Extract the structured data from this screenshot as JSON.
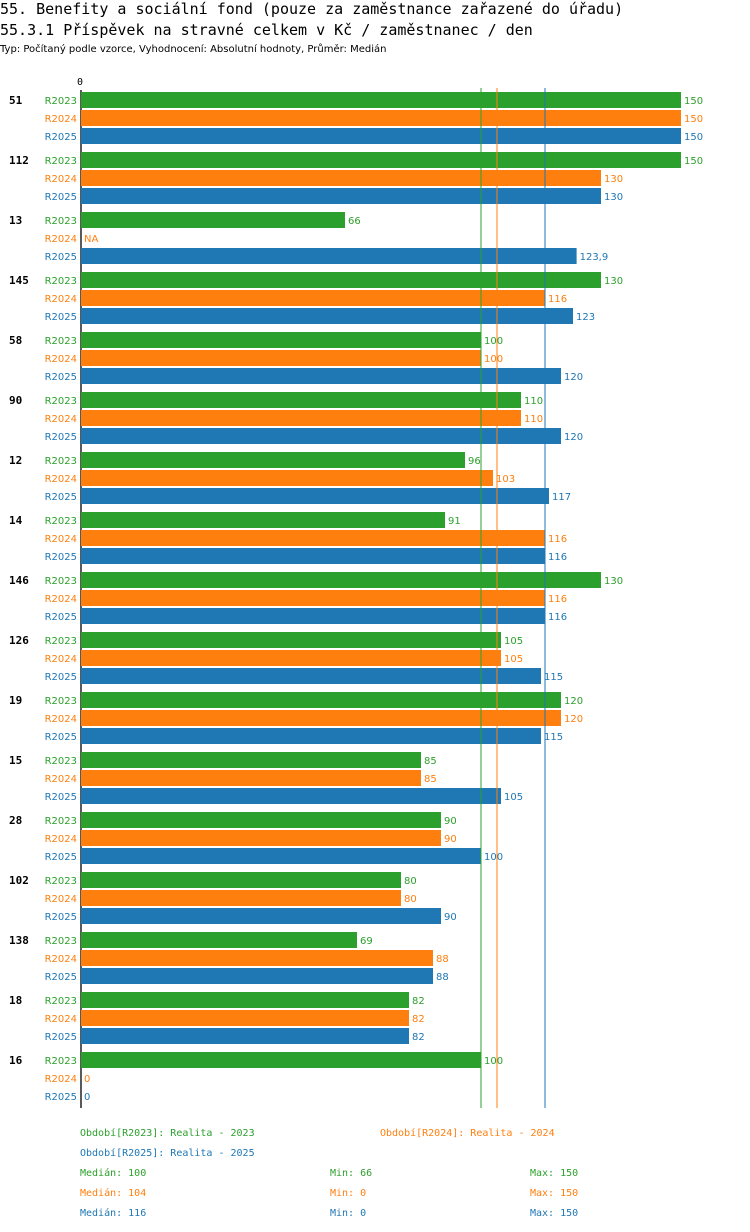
{
  "header": {
    "title_line1": "55. Benefity a sociální fond (pouze za zaměstnance zařazené do úřadu)",
    "title_line2": "55.3.1 Příspěvek na stravné celkem v Kč / zaměstnanec / den",
    "subtitle": "Typ: Počítaný podle vzorce, Vyhodnocení: Absolutní hodnoty, Průměr: Medián"
  },
  "colors": {
    "R2023": "#2ca02c",
    "R2024": "#ff7f0e",
    "R2025": "#1f77b4"
  },
  "chart_data": {
    "type": "bar",
    "orientation": "horizontal",
    "xlim": [
      0,
      150
    ],
    "axis_zero_label": "0",
    "series_names": [
      "R2023",
      "R2024",
      "R2025"
    ],
    "groups": [
      {
        "id": "51",
        "values": [
          150,
          150,
          150
        ],
        "labels": [
          "150",
          "150",
          "150"
        ]
      },
      {
        "id": "112",
        "values": [
          150,
          130,
          130
        ],
        "labels": [
          "150",
          "130",
          "130"
        ]
      },
      {
        "id": "13",
        "values": [
          66,
          null,
          123.9
        ],
        "labels": [
          "66",
          "NA",
          "123,9"
        ]
      },
      {
        "id": "145",
        "values": [
          130,
          116,
          123
        ],
        "labels": [
          "130",
          "116",
          "123"
        ]
      },
      {
        "id": "58",
        "values": [
          100,
          100,
          120
        ],
        "labels": [
          "100",
          "100",
          "120"
        ]
      },
      {
        "id": "90",
        "values": [
          110,
          110,
          120
        ],
        "labels": [
          "110",
          "110",
          "120"
        ]
      },
      {
        "id": "12",
        "values": [
          96,
          103,
          117
        ],
        "labels": [
          "96",
          "103",
          "117"
        ]
      },
      {
        "id": "14",
        "values": [
          91,
          116,
          116
        ],
        "labels": [
          "91",
          "116",
          "116"
        ]
      },
      {
        "id": "146",
        "values": [
          130,
          116,
          116
        ],
        "labels": [
          "130",
          "116",
          "116"
        ]
      },
      {
        "id": "126",
        "values": [
          105,
          105,
          115
        ],
        "labels": [
          "105",
          "105",
          "115"
        ]
      },
      {
        "id": "19",
        "values": [
          120,
          120,
          115
        ],
        "labels": [
          "120",
          "120",
          "115"
        ]
      },
      {
        "id": "15",
        "values": [
          85,
          85,
          105
        ],
        "labels": [
          "85",
          "85",
          "105"
        ]
      },
      {
        "id": "28",
        "values": [
          90,
          90,
          100
        ],
        "labels": [
          "90",
          "90",
          "100"
        ]
      },
      {
        "id": "102",
        "values": [
          80,
          80,
          90
        ],
        "labels": [
          "80",
          "80",
          "90"
        ]
      },
      {
        "id": "138",
        "values": [
          69,
          88,
          88
        ],
        "labels": [
          "69",
          "88",
          "88"
        ]
      },
      {
        "id": "18",
        "values": [
          82,
          82,
          82
        ],
        "labels": [
          "82",
          "82",
          "82"
        ]
      },
      {
        "id": "16",
        "values": [
          100,
          0,
          0
        ],
        "labels": [
          "100",
          "0",
          "0"
        ]
      }
    ],
    "median_lines": [
      {
        "series": "R2023",
        "value": 100
      },
      {
        "series": "R2024",
        "value": 104
      },
      {
        "series": "R2025",
        "value": 116
      }
    ]
  },
  "legend": {
    "periods": [
      {
        "series": "R2023",
        "text": "Období[R2023]: Realita - 2023"
      },
      {
        "series": "R2024",
        "text": "Období[R2024]: Realita - 2024"
      },
      {
        "series": "R2025",
        "text": "Období[R2025]: Realita - 2025"
      }
    ],
    "stats": [
      {
        "series": "R2023",
        "median": "Medián: 100",
        "min": "Min: 66",
        "max": "Max: 150"
      },
      {
        "series": "R2024",
        "median": "Medián: 104",
        "min": "Min: 0",
        "max": "Max: 150"
      },
      {
        "series": "R2025",
        "median": "Medián: 116",
        "min": "Min: 0",
        "max": "Max: 150"
      }
    ]
  }
}
